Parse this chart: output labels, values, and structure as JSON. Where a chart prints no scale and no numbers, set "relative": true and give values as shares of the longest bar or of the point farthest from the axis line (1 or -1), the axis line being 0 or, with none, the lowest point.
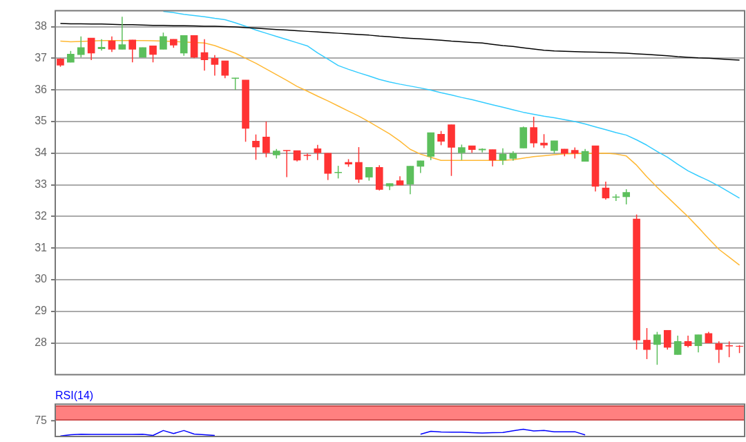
{
  "chart_data": [
    {
      "type": "candlestick",
      "categories": [
        null,
        null,
        null,
        null,
        null,
        null,
        null,
        null,
        null,
        null,
        null,
        null,
        null,
        null,
        null,
        null,
        null,
        null,
        null,
        null,
        null,
        null,
        null,
        null,
        null,
        null,
        null,
        null,
        null,
        null,
        null,
        null,
        null,
        null,
        null,
        null,
        null,
        null,
        null,
        null,
        null,
        null,
        null,
        null,
        null,
        null,
        null,
        null,
        null,
        null,
        null,
        null,
        null,
        null,
        null,
        null,
        null,
        null,
        null,
        null,
        null,
        null,
        null,
        null,
        null,
        null,
        null
      ],
      "ohlc": [
        [
          36.98,
          37.0,
          36.73,
          36.78
        ],
        [
          36.87,
          37.23,
          36.87,
          37.13
        ],
        [
          37.11,
          37.69,
          37.03,
          37.34
        ],
        [
          37.64,
          37.64,
          36.94,
          37.16
        ],
        [
          37.3,
          37.6,
          37.24,
          37.35
        ],
        [
          37.55,
          37.69,
          37.2,
          37.28
        ],
        [
          37.28,
          38.31,
          37.28,
          37.43
        ],
        [
          37.58,
          37.58,
          36.87,
          37.28
        ],
        [
          37.03,
          37.34,
          37.03,
          37.34
        ],
        [
          37.39,
          37.39,
          36.87,
          37.12
        ],
        [
          37.28,
          37.81,
          37.28,
          37.69
        ],
        [
          37.6,
          37.6,
          37.33,
          37.41
        ],
        [
          37.16,
          37.72,
          37.08,
          37.72
        ],
        [
          37.72,
          37.72,
          37.0,
          37.03
        ],
        [
          37.18,
          37.6,
          36.61,
          36.95
        ],
        [
          37.0,
          37.1,
          36.45,
          36.8
        ],
        [
          36.92,
          36.92,
          36.37,
          36.46
        ],
        [
          36.36,
          36.38,
          36.0,
          36.38
        ],
        [
          36.31,
          36.31,
          34.36,
          34.78
        ],
        [
          34.38,
          34.59,
          33.79,
          34.19
        ],
        [
          34.51,
          35.0,
          33.87,
          34.01
        ],
        [
          33.94,
          34.13,
          33.83,
          34.07
        ],
        [
          34.09,
          34.09,
          33.24,
          34.07
        ],
        [
          34.08,
          34.08,
          33.74,
          33.78
        ],
        [
          33.94,
          33.99,
          33.78,
          33.92
        ],
        [
          34.14,
          34.26,
          33.78,
          34.01
        ],
        [
          34.0,
          34.0,
          33.15,
          33.36
        ],
        [
          33.38,
          33.6,
          33.2,
          33.4
        ],
        [
          33.71,
          33.81,
          33.57,
          33.65
        ],
        [
          33.71,
          34.19,
          33.06,
          33.17
        ],
        [
          33.24,
          33.55,
          33.13,
          33.55
        ],
        [
          33.55,
          33.62,
          32.82,
          32.85
        ],
        [
          32.96,
          33.04,
          32.83,
          33.04
        ],
        [
          33.13,
          33.27,
          32.99,
          32.99
        ],
        [
          33.02,
          33.59,
          32.7,
          33.59
        ],
        [
          33.58,
          33.76,
          33.37,
          33.76
        ],
        [
          33.9,
          34.65,
          33.78,
          34.65
        ],
        [
          34.6,
          34.7,
          34.25,
          34.37
        ],
        [
          34.9,
          34.9,
          33.28,
          34.18
        ],
        [
          34.01,
          34.27,
          33.78,
          34.18
        ],
        [
          34.23,
          34.23,
          34.01,
          34.11
        ],
        [
          34.1,
          34.15,
          34.02,
          34.13
        ],
        [
          34.11,
          34.11,
          33.58,
          33.78
        ],
        [
          33.78,
          34.15,
          33.63,
          33.97
        ],
        [
          33.83,
          34.06,
          33.76,
          33.99
        ],
        [
          34.16,
          34.84,
          34.16,
          34.81
        ],
        [
          34.81,
          35.15,
          34.18,
          34.32
        ],
        [
          34.32,
          34.6,
          34.16,
          34.25
        ],
        [
          34.08,
          34.39,
          33.99,
          34.39
        ],
        [
          34.13,
          34.13,
          33.9,
          33.99
        ],
        [
          34.09,
          34.18,
          33.83,
          33.99
        ],
        [
          33.74,
          34.13,
          33.74,
          34.06
        ],
        [
          34.23,
          34.23,
          32.79,
          32.95
        ],
        [
          32.9,
          33.1,
          32.53,
          32.58
        ],
        [
          32.6,
          32.7,
          32.49,
          32.62
        ],
        [
          32.62,
          32.86,
          32.38,
          32.76
        ],
        [
          31.92,
          32.06,
          27.79,
          28.09
        ],
        [
          28.09,
          28.47,
          27.49,
          27.79
        ],
        [
          27.95,
          28.35,
          27.31,
          28.26
        ],
        [
          28.4,
          28.4,
          27.79,
          27.86
        ],
        [
          27.63,
          28.23,
          27.63,
          28.05
        ],
        [
          28.05,
          28.23,
          27.86,
          27.91
        ],
        [
          27.91,
          28.26,
          27.7,
          28.26
        ],
        [
          28.3,
          28.35,
          28.0,
          28.0
        ],
        [
          27.98,
          28.05,
          27.37,
          27.79
        ],
        [
          27.92,
          28.05,
          27.55,
          27.9
        ],
        [
          27.9,
          27.93,
          27.68,
          27.89
        ]
      ],
      "colors": [
        "#ff3333",
        "#5cbf5c",
        "#5cbf5c",
        "#ff3333",
        "#5cbf5c",
        "#ff3333",
        "#5cbf5c",
        "#ff3333",
        "#5cbf5c",
        "#ff3333",
        "#5cbf5c",
        "#ff3333",
        "#5cbf5c",
        "#ff3333",
        "#ff3333",
        "#ff3333",
        "#ff3333",
        "#5cbf5c",
        "#ff3333",
        "#ff3333",
        "#ff3333",
        "#5cbf5c",
        "#ff3333",
        "#ff3333",
        "#ff3333",
        "#ff3333",
        "#ff3333",
        "#5cbf5c",
        "#ff3333",
        "#ff3333",
        "#5cbf5c",
        "#ff3333",
        "#5cbf5c",
        "#ff3333",
        "#5cbf5c",
        "#5cbf5c",
        "#5cbf5c",
        "#ff3333",
        "#ff3333",
        "#5cbf5c",
        "#ff3333",
        "#5cbf5c",
        "#ff3333",
        "#5cbf5c",
        "#5cbf5c",
        "#5cbf5c",
        "#ff3333",
        "#ff3333",
        "#5cbf5c",
        "#ff3333",
        "#ff3333",
        "#5cbf5c",
        "#ff3333",
        "#ff3333",
        "#5cbf5c",
        "#5cbf5c",
        "#ff3333",
        "#ff3333",
        "#5cbf5c",
        "#ff3333",
        "#5cbf5c",
        "#ff3333",
        "#5cbf5c",
        "#ff3333",
        "#ff3333",
        "#ff3333",
        "#ff3333"
      ],
      "series": [
        {
          "type": "line",
          "color": "#000000",
          "values": [
            38.1,
            38.09,
            38.09,
            38.08,
            38.08,
            38.07,
            38.06,
            38.06,
            38.05,
            38.04,
            38.04,
            38.03,
            38.03,
            38.02,
            38.01,
            38.01,
            38.0,
            37.99,
            37.97,
            37.95,
            37.93,
            37.91,
            37.89,
            37.87,
            37.85,
            37.83,
            37.81,
            37.79,
            37.77,
            37.75,
            37.73,
            37.7,
            37.68,
            37.65,
            37.63,
            37.61,
            37.59,
            37.57,
            37.54,
            37.52,
            37.5,
            37.48,
            37.44,
            37.4,
            37.37,
            37.33,
            37.29,
            37.25,
            37.23,
            37.22,
            37.21,
            37.2,
            37.19,
            37.18,
            37.17,
            37.16,
            37.14,
            37.12,
            37.1,
            37.08,
            37.05,
            37.03,
            37.01,
            37.0,
            36.98,
            36.96,
            36.94
          ]
        },
        {
          "type": "line",
          "color": "#33ccff",
          "values": [
            null,
            null,
            null,
            null,
            null,
            null,
            null,
            null,
            null,
            null,
            38.48,
            38.44,
            38.39,
            38.35,
            38.31,
            38.26,
            38.22,
            38.12,
            38.01,
            37.89,
            37.79,
            37.69,
            37.59,
            37.49,
            37.39,
            37.17,
            36.97,
            36.77,
            36.65,
            36.54,
            36.44,
            36.33,
            36.25,
            36.18,
            36.12,
            36.06,
            35.99,
            35.91,
            35.84,
            35.76,
            35.69,
            35.61,
            35.53,
            35.45,
            35.37,
            35.29,
            35.23,
            35.17,
            35.12,
            35.06,
            35.0,
            34.92,
            34.83,
            34.74,
            34.65,
            34.57,
            34.42,
            34.25,
            34.05,
            33.87,
            33.65,
            33.44,
            33.28,
            33.13,
            32.96,
            32.77,
            32.58
          ]
        },
        {
          "type": "line",
          "color": "#ffb833",
          "values": [
            37.54,
            37.52,
            37.53,
            null,
            37.56,
            null,
            37.56,
            null,
            37.56,
            37.55,
            null,
            37.53,
            null,
            null,
            37.48,
            37.4,
            37.28,
            37.16,
            37.0,
            36.84,
            36.66,
            36.48,
            36.3,
            36.11,
            35.96,
            35.8,
            35.65,
            35.49,
            35.33,
            35.17,
            34.99,
            34.8,
            34.61,
            34.38,
            34.12,
            33.97,
            33.87,
            33.77,
            33.77,
            33.77,
            33.77,
            33.77,
            null,
            33.77,
            33.79,
            33.84,
            33.89,
            33.92,
            33.95,
            33.98,
            null,
            null,
            null,
            34.0,
            33.97,
            33.91,
            33.62,
            33.25,
            32.92,
            32.61,
            32.3,
            31.99,
            31.65,
            31.3,
            30.96,
            30.71,
            30.46
          ]
        }
      ],
      "ylim": [
        27,
        38.5
      ],
      "yticks": [
        28,
        29,
        30,
        31,
        32,
        33,
        34,
        35,
        36,
        37,
        38
      ],
      "grid": "y",
      "tick_labels": "y"
    },
    {
      "type": "line",
      "title": "RSI(14)",
      "relative": true,
      "categories": [
        null,
        null,
        null,
        null,
        null,
        null,
        null,
        null,
        null,
        null,
        null,
        null,
        null,
        null,
        null,
        null,
        null,
        null,
        null,
        null,
        null,
        null,
        null,
        null,
        null,
        null,
        null,
        null,
        null,
        null,
        null,
        null,
        null,
        null,
        null,
        null,
        null,
        null,
        null,
        null,
        null,
        null,
        null,
        null,
        null,
        null,
        null,
        null,
        null,
        null,
        null,
        null,
        null,
        null,
        null,
        null,
        null,
        null,
        null,
        null,
        null,
        null,
        null,
        null,
        null,
        null,
        null
      ],
      "series": [
        {
          "color": "#0000ff",
          "values": [
            0.07,
            0.24,
            0.31,
            0.3,
            0.28,
            0.28,
            0.28,
            0.28,
            0.31,
            0.14,
            0.83,
            0.41,
            0.83,
            0.34,
            0.24,
            0.14,
            null,
            null,
            null,
            null,
            null,
            null,
            null,
            null,
            null,
            null,
            null,
            null,
            null,
            null,
            null,
            null,
            null,
            null,
            null,
            0.31,
            0.72,
            0.62,
            0.6,
            0.59,
            0.53,
            0.48,
            0.52,
            0.55,
            0.8,
            1,
            0.76,
            0.83,
            0.66,
            0.66,
            0.66,
            0.21,
            null,
            null,
            null,
            null,
            null,
            null,
            null,
            null,
            null,
            null,
            null,
            null,
            null,
            null,
            null
          ]
        }
      ],
      "annotations": [
        "75"
      ],
      "tick_labels": false
    }
  ]
}
